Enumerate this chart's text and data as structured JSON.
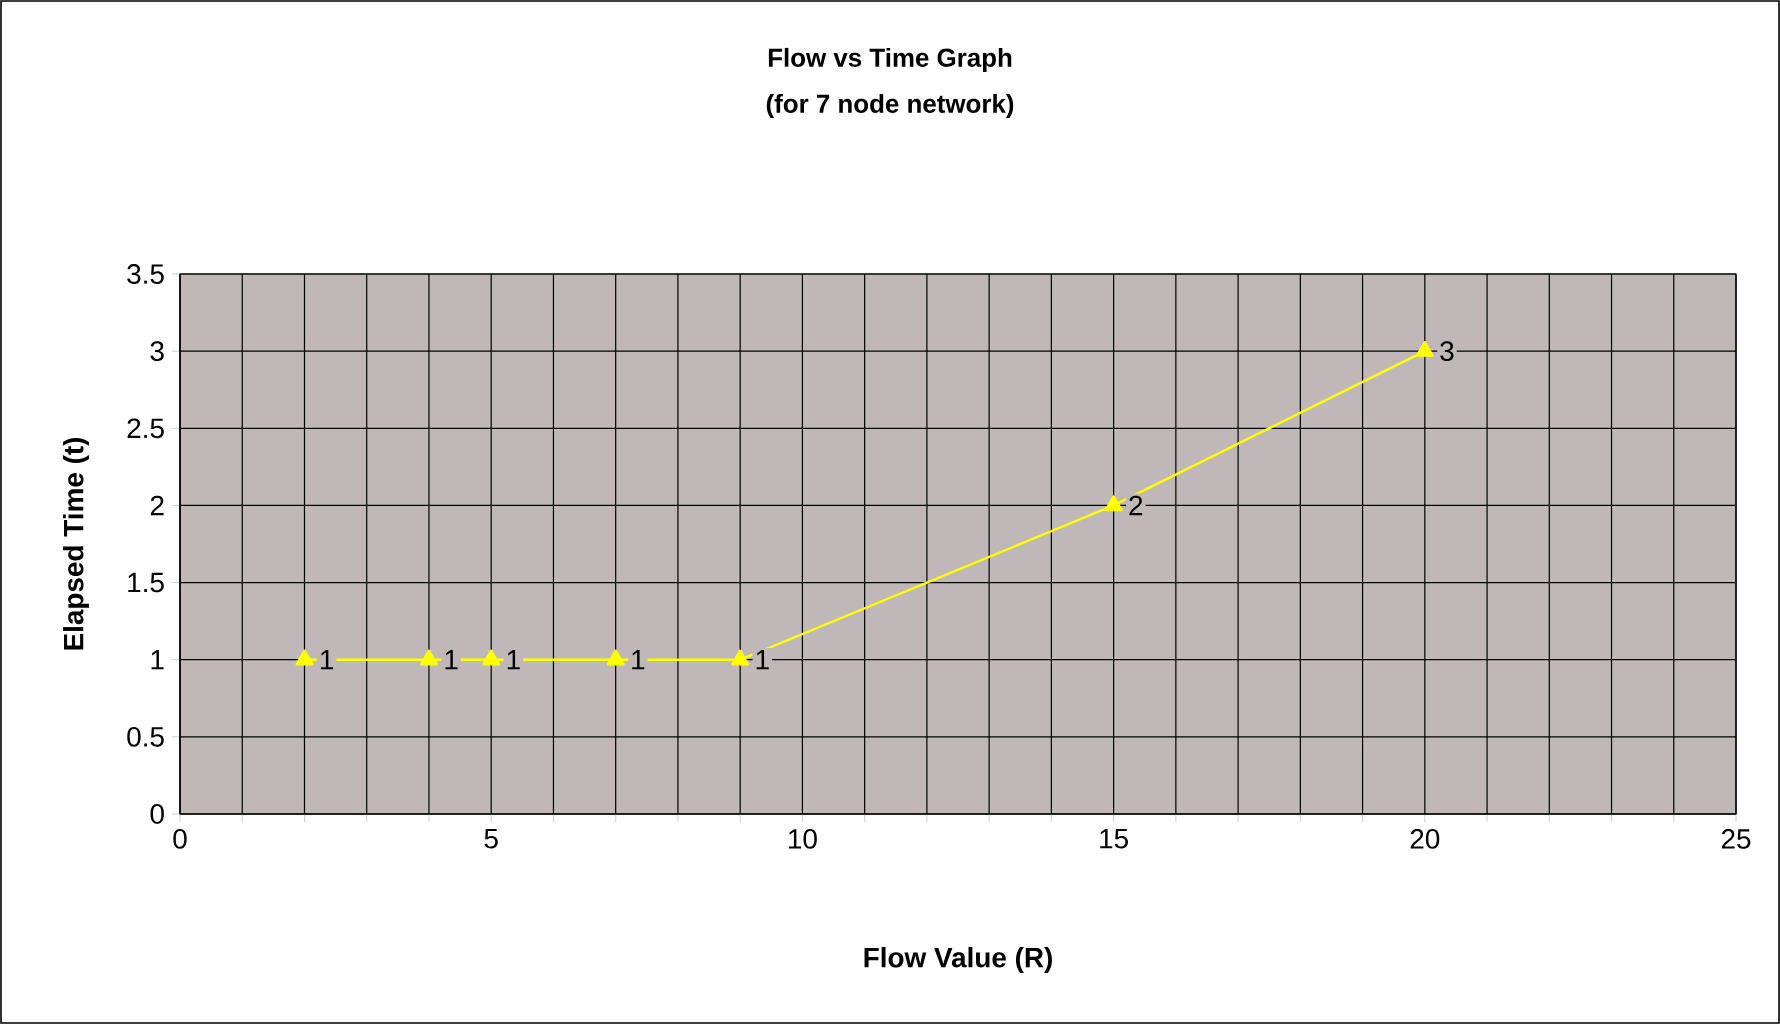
{
  "chart_data": {
    "type": "line",
    "title": "Flow vs Time Graph",
    "subtitle": "(for 7 node network)",
    "xlabel": "Flow Value (R)",
    "ylabel": "Elapsed Time (t)",
    "x": [
      2,
      4,
      5,
      7,
      9,
      15,
      20
    ],
    "series": [
      {
        "color": "#ffff00",
        "values": [
          1,
          1,
          1,
          1,
          1,
          2,
          3
        ]
      }
    ],
    "xlim": [
      0,
      25
    ],
    "xticks": [
      0,
      {
        "value": 1,
        "label": null
      },
      {
        "value": 2,
        "label": null
      },
      {
        "value": 3,
        "label": null
      },
      {
        "value": 4,
        "label": null
      },
      5,
      {
        "value": 6,
        "label": null
      },
      {
        "value": 7,
        "label": null
      },
      {
        "value": 8,
        "label": null
      },
      {
        "value": 9,
        "label": null
      },
      10,
      {
        "value": 11,
        "label": null
      },
      {
        "value": 12,
        "label": null
      },
      {
        "value": 13,
        "label": null
      },
      {
        "value": 14,
        "label": null
      },
      15,
      {
        "value": 16,
        "label": null
      },
      {
        "value": 17,
        "label": null
      },
      {
        "value": 18,
        "label": null
      },
      {
        "value": 19,
        "label": null
      },
      20,
      {
        "value": 21,
        "label": null
      },
      {
        "value": 22,
        "label": null
      },
      {
        "value": 23,
        "label": null
      },
      {
        "value": 24,
        "label": null
      },
      25
    ],
    "ylim": [
      0,
      3.5
    ],
    "yticks": [
      0,
      0.5,
      1,
      1.5,
      2,
      2.5,
      3,
      3.5
    ],
    "grid": true,
    "marker": "triangle",
    "line_style": "solid",
    "data_labels": true
  }
}
